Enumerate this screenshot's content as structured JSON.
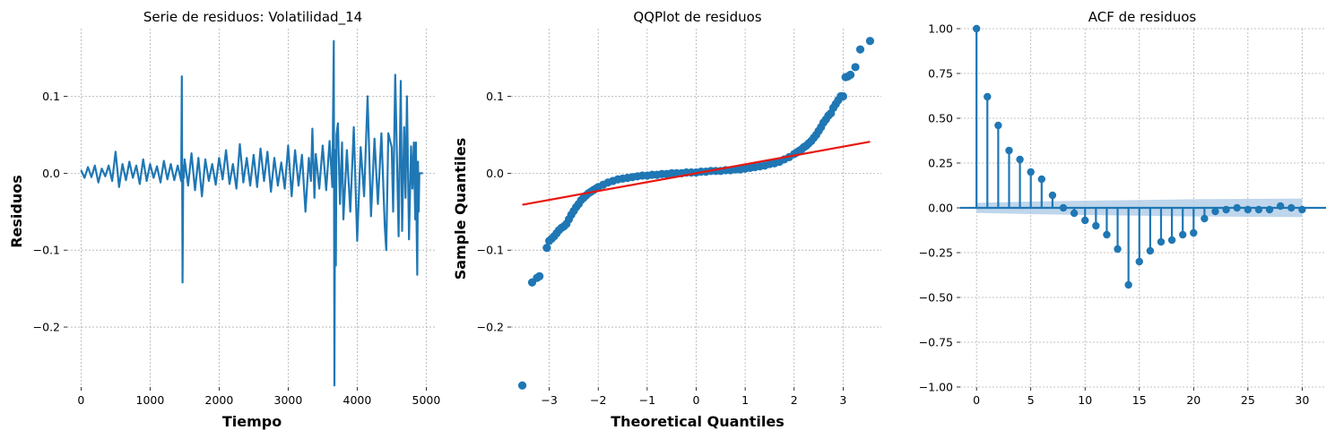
{
  "chart_data": [
    {
      "type": "line",
      "title": "Serie de residuos: Volatilidad_14",
      "xlabel": "Tiempo",
      "ylabel": "Residuos",
      "xlim": [
        -200,
        5150
      ],
      "ylim": [
        -0.278,
        0.188
      ],
      "xticks": [
        0,
        1000,
        2000,
        3000,
        4000,
        5000
      ],
      "yticks": [
        -0.2,
        -0.1,
        0.0,
        0.1
      ],
      "ytick_labels": [
        "−0.2",
        "−0.1",
        "0.0",
        "0.1"
      ],
      "grid": true,
      "color": "#1f77b4",
      "series": [
        {
          "x": [
            0,
            50,
            100,
            150,
            200,
            250,
            300,
            350,
            400,
            450,
            500,
            550,
            600,
            650,
            700,
            750,
            800,
            850,
            900,
            950,
            1000,
            1050,
            1100,
            1150,
            1200,
            1250,
            1300,
            1350,
            1400,
            1450,
            1460,
            1470,
            1480,
            1490,
            1500,
            1550,
            1600,
            1650,
            1700,
            1750,
            1800,
            1850,
            1900,
            1950,
            2000,
            2050,
            2100,
            2150,
            2200,
            2250,
            2300,
            2350,
            2400,
            2450,
            2500,
            2550,
            2600,
            2650,
            2700,
            2750,
            2800,
            2850,
            2900,
            2950,
            3000,
            3050,
            3100,
            3150,
            3200,
            3250,
            3300,
            3330,
            3350,
            3380,
            3400,
            3450,
            3500,
            3550,
            3600,
            3640,
            3660,
            3670,
            3680,
            3690,
            3700,
            3720,
            3750,
            3780,
            3800,
            3850,
            3900,
            3950,
            4000,
            4050,
            4100,
            4150,
            4200,
            4250,
            4300,
            4350,
            4400,
            4420,
            4450,
            4500,
            4520,
            4550,
            4600,
            4630,
            4650,
            4680,
            4700,
            4720,
            4750,
            4780,
            4800,
            4820,
            4840,
            4850,
            4860,
            4870,
            4880,
            4890,
            4900,
            4920,
            4950
          ],
          "y": [
            0.004,
            -0.006,
            0.008,
            -0.005,
            0.01,
            -0.012,
            0.006,
            -0.004,
            0.01,
            -0.01,
            0.028,
            -0.018,
            0.012,
            -0.009,
            0.015,
            -0.006,
            0.01,
            -0.014,
            0.018,
            -0.01,
            0.012,
            -0.006,
            0.009,
            -0.012,
            0.016,
            -0.008,
            0.012,
            -0.009,
            0.01,
            -0.01,
            0.126,
            -0.142,
            0.01,
            -0.006,
            0.018,
            -0.016,
            0.026,
            -0.022,
            0.02,
            -0.03,
            0.018,
            -0.01,
            0.012,
            -0.015,
            0.02,
            -0.008,
            0.03,
            -0.014,
            0.012,
            -0.02,
            0.038,
            -0.012,
            0.02,
            -0.016,
            0.024,
            -0.018,
            0.032,
            -0.01,
            0.028,
            -0.024,
            0.02,
            -0.016,
            0.014,
            -0.02,
            0.036,
            -0.03,
            0.03,
            -0.016,
            0.024,
            -0.05,
            0.02,
            -0.01,
            0.058,
            -0.032,
            0.025,
            -0.02,
            0.036,
            -0.022,
            0.042,
            -0.018,
            0.172,
            -0.276,
            0.03,
            -0.12,
            0.05,
            0.065,
            -0.04,
            0.04,
            -0.06,
            0.03,
            -0.05,
            0.06,
            -0.088,
            0.034,
            -0.03,
            0.1,
            -0.056,
            0.045,
            -0.04,
            0.052,
            -0.07,
            -0.1,
            0.052,
            0.034,
            -0.05,
            0.128,
            -0.082,
            0.12,
            -0.075,
            0.06,
            -0.032,
            0.1,
            -0.086,
            0.035,
            -0.02,
            0.04,
            -0.06,
            0.04,
            -0.072,
            -0.132,
            0.015,
            -0.05,
            0.0,
            0.0,
            0.0
          ]
        }
      ]
    },
    {
      "type": "scatter",
      "title": "QQPlot de residuos",
      "xlabel": "Theoretical Quantiles",
      "ylabel": "Sample Quantiles",
      "xlim": [
        -3.78,
        3.78
      ],
      "ylim": [
        -0.278,
        0.188
      ],
      "xticks": [
        -3,
        -2,
        -1,
        0,
        1,
        2,
        3
      ],
      "xtick_labels": [
        "−3",
        "−2",
        "−1",
        "0",
        "1",
        "2",
        "3"
      ],
      "yticks": [
        -0.2,
        -0.1,
        0.0,
        0.1
      ],
      "ytick_labels": [
        "−0.2",
        "−0.1",
        "0.0",
        "0.1"
      ],
      "grid": true,
      "color": "#1f77b4",
      "line_color": "#e8170f",
      "fit_line": {
        "x": [
          -3.55,
          3.55
        ],
        "y": [
          -0.041,
          0.041
        ]
      },
      "series": [
        {
          "x": [
            -3.55,
            -3.35,
            -3.25,
            -3.2,
            -3.05,
            -3.0,
            -2.95,
            -2.9,
            -2.85,
            -2.8,
            -2.75,
            -2.7,
            -2.65,
            -2.6,
            -2.55,
            -2.5,
            -2.45,
            -2.4,
            -2.35,
            -2.3,
            -2.25,
            -2.2,
            -2.15,
            -2.1,
            -2.05,
            -2.0,
            -1.9,
            -1.8,
            -1.7,
            -1.6,
            -1.5,
            -1.4,
            -1.3,
            -1.2,
            -1.1,
            -1.0,
            -0.9,
            -0.8,
            -0.7,
            -0.6,
            -0.5,
            -0.4,
            -0.3,
            -0.2,
            -0.1,
            0.0,
            0.1,
            0.2,
            0.3,
            0.4,
            0.5,
            0.6,
            0.7,
            0.8,
            0.9,
            1.0,
            1.1,
            1.2,
            1.3,
            1.4,
            1.5,
            1.6,
            1.7,
            1.8,
            1.9,
            2.0,
            2.05,
            2.1,
            2.15,
            2.2,
            2.25,
            2.3,
            2.35,
            2.4,
            2.45,
            2.5,
            2.55,
            2.6,
            2.65,
            2.7,
            2.75,
            2.8,
            2.85,
            2.9,
            2.95,
            3.0,
            3.05,
            3.1,
            3.15,
            3.25,
            3.35,
            3.55
          ],
          "y": [
            -0.276,
            -0.142,
            -0.136,
            -0.134,
            -0.097,
            -0.088,
            -0.085,
            -0.082,
            -0.078,
            -0.074,
            -0.071,
            -0.069,
            -0.066,
            -0.06,
            -0.054,
            -0.049,
            -0.044,
            -0.04,
            -0.035,
            -0.032,
            -0.029,
            -0.026,
            -0.024,
            -0.022,
            -0.02,
            -0.018,
            -0.015,
            -0.012,
            -0.01,
            -0.008,
            -0.007,
            -0.006,
            -0.005,
            -0.004,
            -0.003,
            -0.003,
            -0.002,
            -0.002,
            -0.001,
            -0.001,
            0.0,
            0.0,
            0.0,
            0.001,
            0.001,
            0.001,
            0.002,
            0.002,
            0.003,
            0.003,
            0.003,
            0.004,
            0.004,
            0.005,
            0.005,
            0.006,
            0.007,
            0.008,
            0.009,
            0.01,
            0.012,
            0.013,
            0.015,
            0.018,
            0.021,
            0.025,
            0.027,
            0.029,
            0.031,
            0.034,
            0.036,
            0.039,
            0.042,
            0.046,
            0.05,
            0.055,
            0.06,
            0.066,
            0.07,
            0.075,
            0.078,
            0.085,
            0.09,
            0.095,
            0.1,
            0.1,
            0.125,
            0.126,
            0.128,
            0.138,
            0.161,
            0.172
          ]
        }
      ]
    },
    {
      "type": "stem",
      "title": "ACF de residuos",
      "xlim": [
        -1.5,
        32.2
      ],
      "ylim": [
        -1.0,
        1.0
      ],
      "xticks": [
        0,
        5,
        10,
        15,
        20,
        25,
        30
      ],
      "yticks": [
        -1.0,
        -0.75,
        -0.5,
        -0.25,
        0.0,
        0.25,
        0.5,
        0.75,
        1.0
      ],
      "ytick_labels": [
        "−1.00",
        "−0.75",
        "−0.50",
        "−0.25",
        "0.00",
        "0.25",
        "0.50",
        "0.75",
        "1.00"
      ],
      "grid": true,
      "color": "#1f77b4",
      "band_color": "#a9c8e6",
      "confidence_band": {
        "x": [
          0,
          5,
          10,
          15,
          20,
          25,
          30
        ],
        "upper": [
          0.028,
          0.035,
          0.04,
          0.044,
          0.048,
          0.05,
          0.052
        ],
        "lower": [
          -0.028,
          -0.035,
          -0.04,
          -0.044,
          -0.048,
          -0.05,
          -0.052
        ]
      },
      "series": [
        {
          "lags": [
            0,
            1,
            2,
            3,
            4,
            5,
            6,
            7,
            8,
            9,
            10,
            11,
            12,
            13,
            14,
            15,
            16,
            17,
            18,
            19,
            20,
            21,
            22,
            23,
            24,
            25,
            26,
            27,
            28,
            29,
            30
          ],
          "values": [
            1.0,
            0.62,
            0.46,
            0.32,
            0.27,
            0.2,
            0.16,
            0.07,
            0.0,
            -0.03,
            -0.07,
            -0.1,
            -0.15,
            -0.23,
            -0.43,
            -0.3,
            -0.24,
            -0.19,
            -0.18,
            -0.15,
            -0.14,
            -0.06,
            -0.02,
            -0.01,
            0.0,
            -0.01,
            -0.01,
            -0.01,
            0.01,
            0.0,
            -0.01
          ]
        }
      ]
    }
  ]
}
